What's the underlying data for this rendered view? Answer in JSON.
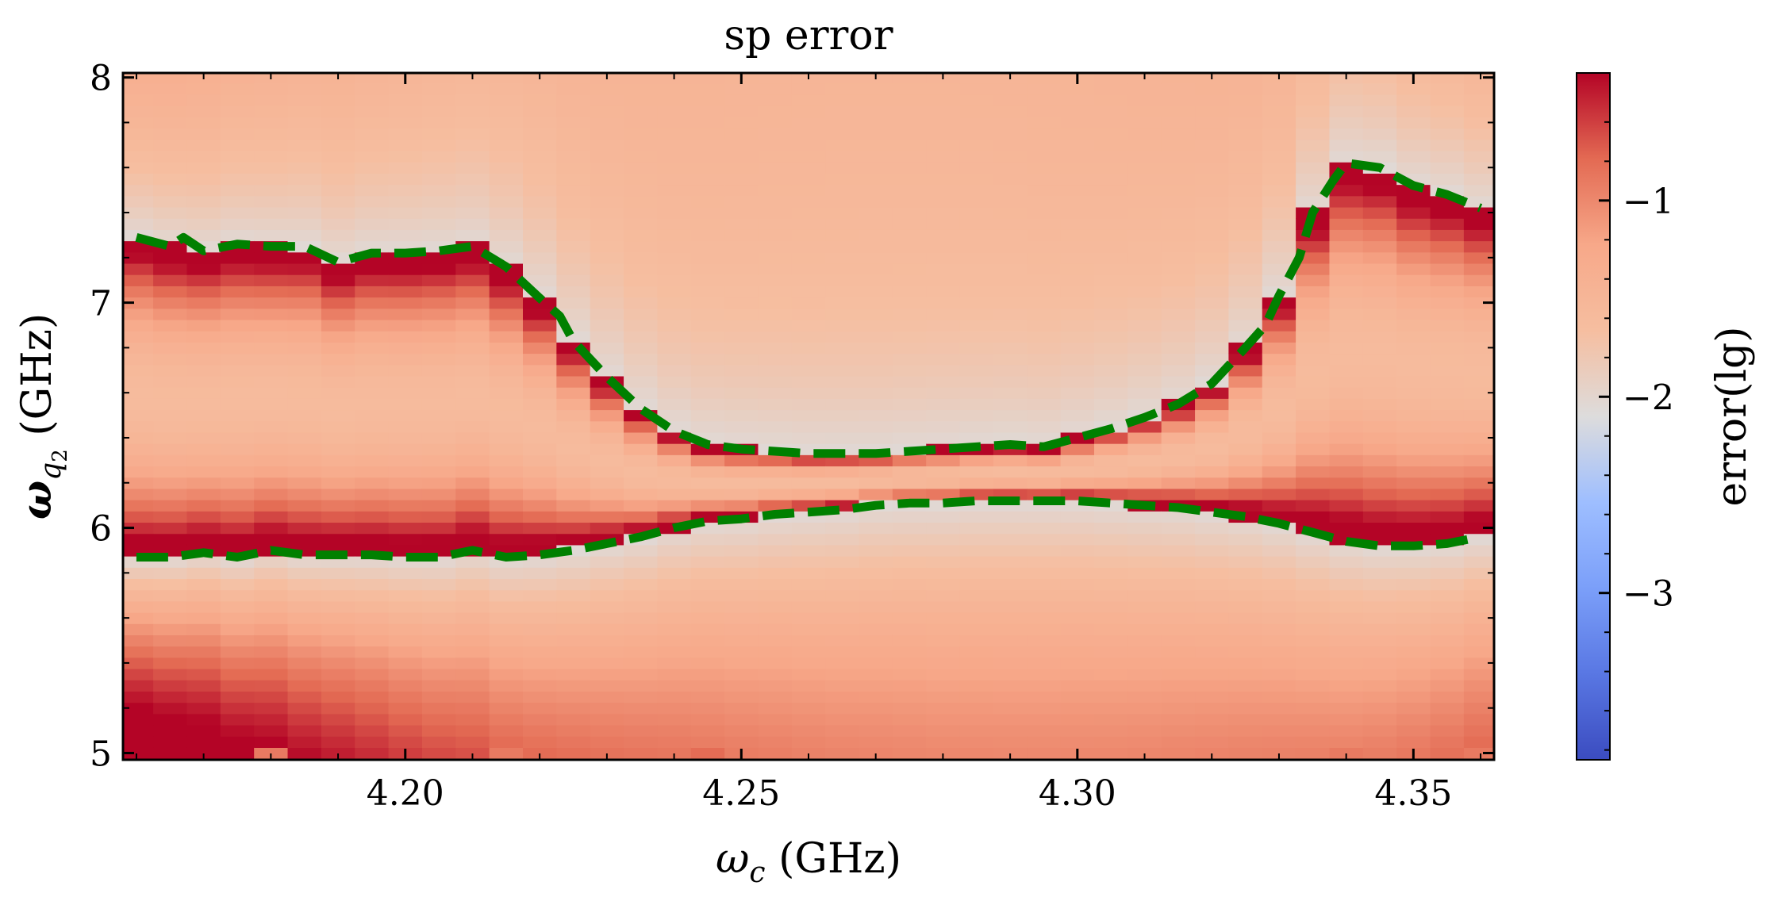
{
  "chart_data": {
    "type": "heatmap",
    "title": "sp error",
    "xlabel": {
      "symbol": "ω",
      "sub": "c",
      "unit": " (GHz)"
    },
    "ylabel": {
      "symbol": "ω",
      "sub": "q",
      "subsub": "2",
      "unit": " (GHz)"
    },
    "xlim": [
      4.158,
      4.362
    ],
    "ylim": [
      4.97,
      8.02
    ],
    "x_ticks": [
      4.2,
      4.25,
      4.3,
      4.35
    ],
    "x_tick_labels": [
      "4.20",
      "4.25",
      "4.30",
      "4.35"
    ],
    "y_ticks": [
      5,
      6,
      7,
      8
    ],
    "y_tick_labels": [
      "5",
      "6",
      "7",
      "8"
    ],
    "grid": {
      "x_start": 4.16,
      "x_end": 4.36,
      "nx": 41,
      "y_start": 5.0,
      "y_end": 8.0,
      "ny": 61
    },
    "colorbar": {
      "label": "error(lg)",
      "colormap": "coolwarm",
      "vmin": -3.85,
      "vmax": -0.35,
      "ticks": [
        -1,
        -2,
        -3
      ],
      "tick_labels": [
        "−1",
        "−2",
        "−3"
      ]
    },
    "contour_color": "#008000",
    "contours": [
      {
        "x": [
          4.16,
          4.165,
          4.167,
          4.17,
          4.175,
          4.18,
          4.185,
          4.19,
          4.195,
          4.2,
          4.205,
          4.21,
          4.215,
          4.22,
          4.223,
          4.225,
          4.23,
          4.235,
          4.24,
          4.245,
          4.25,
          4.255,
          4.26,
          4.265,
          4.27,
          4.275,
          4.28,
          4.285,
          4.29,
          4.295,
          4.3,
          4.305,
          4.31,
          4.315,
          4.32,
          4.325,
          4.328,
          4.33,
          4.333,
          4.335,
          4.338,
          4.34,
          4.345,
          4.35,
          4.355,
          4.36
        ],
        "y": [
          7.29,
          7.25,
          7.29,
          7.23,
          7.26,
          7.25,
          7.25,
          7.18,
          7.22,
          7.22,
          7.23,
          7.25,
          7.16,
          7.02,
          6.94,
          6.83,
          6.67,
          6.53,
          6.43,
          6.37,
          6.35,
          6.34,
          6.33,
          6.33,
          6.33,
          6.34,
          6.35,
          6.36,
          6.37,
          6.36,
          6.4,
          6.44,
          6.49,
          6.55,
          6.64,
          6.8,
          6.9,
          7.03,
          7.2,
          7.4,
          7.54,
          7.62,
          7.6,
          7.52,
          7.48,
          7.42
        ]
      },
      {
        "x": [
          4.16,
          4.165,
          4.17,
          4.175,
          4.18,
          4.185,
          4.19,
          4.195,
          4.2,
          4.205,
          4.21,
          4.215,
          4.22,
          4.225,
          4.23,
          4.235,
          4.24,
          4.245,
          4.25,
          4.255,
          4.26,
          4.265,
          4.27,
          4.275,
          4.28,
          4.285,
          4.29,
          4.295,
          4.3,
          4.305,
          4.31,
          4.315,
          4.32,
          4.325,
          4.33,
          4.335,
          4.34,
          4.345,
          4.35,
          4.355,
          4.36
        ],
        "y": [
          5.87,
          5.87,
          5.89,
          5.87,
          5.9,
          5.88,
          5.88,
          5.88,
          5.87,
          5.87,
          5.9,
          5.87,
          5.88,
          5.9,
          5.93,
          5.96,
          6.0,
          6.03,
          6.04,
          6.06,
          6.07,
          6.08,
          6.1,
          6.11,
          6.11,
          6.12,
          6.12,
          6.12,
          6.12,
          6.11,
          6.1,
          6.09,
          6.07,
          6.05,
          6.02,
          5.98,
          5.94,
          5.92,
          5.92,
          5.93,
          5.96
        ]
      }
    ],
    "hot_cells": [
      {
        "x": 4.18,
        "y": 5.0,
        "value": -0.9
      },
      {
        "x": 4.215,
        "y": 5.0,
        "value": -0.9
      },
      {
        "x": 4.245,
        "y": 5.0,
        "value": -0.8
      },
      {
        "x": 4.34,
        "y": 5.0,
        "value": -0.9
      },
      {
        "x": 4.36,
        "y": 5.0,
        "value": -0.9
      }
    ]
  }
}
